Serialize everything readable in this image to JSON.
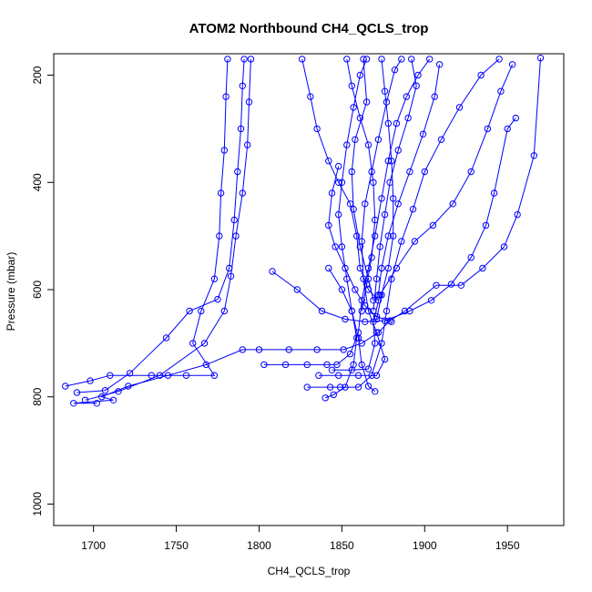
{
  "chart_data": {
    "type": "line",
    "title": "ATOM2 Northbound CH4_QCLS_trop",
    "xlabel": "CH4_QCLS_trop",
    "ylabel": "Pressure (mbar)",
    "xlim": [
      1676,
      1984
    ],
    "ylim": [
      1040,
      160
    ],
    "y_inverted": true,
    "xticks": [
      1700,
      1750,
      1800,
      1850,
      1900,
      1950
    ],
    "yticks": [
      200,
      400,
      600,
      800,
      1000
    ],
    "series_color": "#0000ff",
    "marker": "open-circle",
    "grid": false,
    "series": [
      {
        "values_note": "",
        "points": [
          [
            1702,
            812
          ],
          [
            1688,
            812
          ],
          [
            1712,
            806
          ],
          [
            1705,
            800
          ],
          [
            1721,
            780
          ],
          [
            1745,
            760
          ],
          [
            1768,
            740
          ],
          [
            1790,
            712
          ],
          [
            1800,
            712
          ],
          [
            1818,
            712
          ],
          [
            1835,
            712
          ],
          [
            1851,
            712
          ],
          [
            1862,
            700
          ],
          [
            1872,
            680
          ],
          [
            1879,
            658
          ],
          [
            1888,
            640
          ],
          [
            1907,
            592
          ],
          [
            1922,
            592
          ],
          [
            1935,
            560
          ],
          [
            1948,
            520
          ],
          [
            1956,
            460
          ],
          [
            1966,
            350
          ],
          [
            1970,
            168
          ]
        ]
      },
      {
        "values_note": "",
        "points": [
          [
            1683,
            780
          ],
          [
            1698,
            770
          ],
          [
            1710,
            760
          ],
          [
            1735,
            760
          ],
          [
            1756,
            760
          ],
          [
            1773,
            760
          ],
          [
            1760,
            700
          ],
          [
            1765,
            640
          ],
          [
            1773,
            580
          ],
          [
            1776,
            500
          ],
          [
            1777,
            420
          ],
          [
            1779,
            340
          ],
          [
            1780,
            240
          ],
          [
            1781,
            170
          ]
        ]
      },
      {
        "values_note": "",
        "points": [
          [
            1690,
            792
          ],
          [
            1707,
            788
          ],
          [
            1722,
            756
          ],
          [
            1744,
            690
          ],
          [
            1758,
            640
          ],
          [
            1775,
            618
          ],
          [
            1782,
            560
          ],
          [
            1785,
            470
          ],
          [
            1787,
            380
          ],
          [
            1789,
            300
          ],
          [
            1790,
            220
          ],
          [
            1791,
            170
          ]
        ]
      },
      {
        "values_note": "",
        "points": [
          [
            1695,
            806
          ],
          [
            1715,
            790
          ],
          [
            1740,
            760
          ],
          [
            1767,
            700
          ],
          [
            1779,
            640
          ],
          [
            1783,
            575
          ],
          [
            1786,
            500
          ],
          [
            1790,
            420
          ],
          [
            1793,
            330
          ],
          [
            1794,
            250
          ],
          [
            1795,
            170
          ]
        ]
      },
      {
        "values_note": "",
        "points": [
          [
            1803,
            740
          ],
          [
            1816,
            740
          ],
          [
            1829,
            740
          ],
          [
            1841,
            740
          ],
          [
            1847,
            740
          ],
          [
            1855,
            720
          ],
          [
            1860,
            680
          ],
          [
            1862,
            620
          ],
          [
            1866,
            560
          ],
          [
            1870,
            500
          ],
          [
            1874,
            430
          ],
          [
            1878,
            360
          ],
          [
            1883,
            290
          ],
          [
            1889,
            240
          ],
          [
            1896,
            200
          ],
          [
            1903,
            170
          ]
        ]
      },
      {
        "values_note": "",
        "points": [
          [
            1829,
            782
          ],
          [
            1843,
            782
          ],
          [
            1849,
            782
          ],
          [
            1860,
            782
          ],
          [
            1868,
            760
          ],
          [
            1874,
            700
          ],
          [
            1877,
            640
          ],
          [
            1880,
            580
          ],
          [
            1886,
            510
          ],
          [
            1893,
            450
          ],
          [
            1900,
            380
          ],
          [
            1910,
            320
          ],
          [
            1921,
            260
          ],
          [
            1934,
            200
          ],
          [
            1945,
            170
          ]
        ]
      },
      {
        "values_note": "",
        "points": [
          [
            1840,
            802
          ],
          [
            1845,
            796
          ],
          [
            1852,
            782
          ],
          [
            1857,
            740
          ],
          [
            1859,
            690
          ],
          [
            1856,
            640
          ],
          [
            1853,
            580
          ],
          [
            1850,
            520
          ],
          [
            1848,
            460
          ],
          [
            1850,
            400
          ],
          [
            1853,
            330
          ],
          [
            1857,
            260
          ],
          [
            1861,
            200
          ],
          [
            1865,
            170
          ]
        ]
      },
      {
        "values_note": "",
        "points": [
          [
            1836,
            760
          ],
          [
            1848,
            760
          ],
          [
            1860,
            760
          ],
          [
            1871,
            760
          ],
          [
            1876,
            730
          ],
          [
            1871,
            680
          ],
          [
            1866,
            640
          ],
          [
            1863,
            580
          ],
          [
            1862,
            510
          ],
          [
            1864,
            440
          ],
          [
            1868,
            380
          ],
          [
            1872,
            320
          ],
          [
            1877,
            250
          ],
          [
            1882,
            190
          ],
          [
            1886,
            170
          ]
        ]
      },
      {
        "values_note": "",
        "points": [
          [
            1844,
            750
          ],
          [
            1856,
            750
          ],
          [
            1866,
            748
          ],
          [
            1870,
            700
          ],
          [
            1869,
            660
          ],
          [
            1873,
            610
          ],
          [
            1883,
            560
          ],
          [
            1894,
            510
          ],
          [
            1905,
            480
          ],
          [
            1917,
            440
          ],
          [
            1928,
            380
          ],
          [
            1938,
            300
          ],
          [
            1946,
            230
          ],
          [
            1953,
            180
          ]
        ]
      },
      {
        "values_note": "",
        "points": [
          [
            1808,
            566
          ],
          [
            1823,
            600
          ],
          [
            1838,
            640
          ],
          [
            1852,
            655
          ],
          [
            1864,
            660
          ],
          [
            1876,
            658
          ],
          [
            1891,
            640
          ],
          [
            1904,
            620
          ],
          [
            1916,
            590
          ],
          [
            1928,
            540
          ],
          [
            1937,
            480
          ],
          [
            1942,
            420
          ],
          [
            1950,
            300
          ],
          [
            1955,
            280
          ]
        ]
      },
      {
        "values_note": "",
        "points": [
          [
            1842,
            560
          ],
          [
            1850,
            600
          ],
          [
            1856,
            640
          ],
          [
            1860,
            690
          ],
          [
            1862,
            740
          ],
          [
            1866,
            780
          ],
          [
            1870,
            790
          ]
        ]
      },
      {
        "values_note": "",
        "points": [
          [
            1848,
            370
          ],
          [
            1844,
            420
          ],
          [
            1842,
            480
          ],
          [
            1846,
            520
          ],
          [
            1852,
            560
          ],
          [
            1858,
            600
          ],
          [
            1864,
            630
          ],
          [
            1871,
            650
          ],
          [
            1880,
            660
          ]
        ]
      },
      {
        "values_note": "",
        "points": [
          [
            1826,
            170
          ],
          [
            1831,
            240
          ],
          [
            1835,
            300
          ],
          [
            1842,
            360
          ],
          [
            1848,
            400
          ],
          [
            1855,
            440
          ],
          [
            1859,
            500
          ],
          [
            1861,
            560
          ],
          [
            1866,
            600
          ],
          [
            1872,
            620
          ]
        ]
      },
      {
        "values_note": "",
        "points": [
          [
            1853,
            170
          ],
          [
            1856,
            220
          ],
          [
            1861,
            280
          ],
          [
            1866,
            330
          ],
          [
            1869,
            400
          ],
          [
            1870,
            470
          ],
          [
            1868,
            540
          ],
          [
            1865,
            590
          ],
          [
            1862,
            640
          ]
        ]
      },
      {
        "values_note": "",
        "points": [
          [
            1874,
            170
          ],
          [
            1876,
            230
          ],
          [
            1878,
            290
          ],
          [
            1880,
            360
          ],
          [
            1881,
            430
          ],
          [
            1881,
            500
          ],
          [
            1878,
            560
          ],
          [
            1874,
            610
          ],
          [
            1871,
            655
          ]
        ]
      },
      {
        "values_note": "",
        "points": [
          [
            1892,
            170
          ],
          [
            1895,
            220
          ],
          [
            1890,
            280
          ],
          [
            1884,
            340
          ],
          [
            1879,
            400
          ],
          [
            1876,
            460
          ],
          [
            1873,
            520
          ],
          [
            1871,
            580
          ],
          [
            1869,
            640
          ]
        ]
      },
      {
        "values_note": "",
        "points": [
          [
            1909,
            180
          ],
          [
            1906,
            240
          ],
          [
            1899,
            310
          ],
          [
            1891,
            380
          ],
          [
            1884,
            440
          ],
          [
            1878,
            500
          ],
          [
            1874,
            560
          ],
          [
            1872,
            610
          ]
        ]
      },
      {
        "values_note": "",
        "points": [
          [
            1863,
            170
          ],
          [
            1865,
            250
          ],
          [
            1858,
            320
          ],
          [
            1856,
            380
          ],
          [
            1857,
            450
          ],
          [
            1861,
            520
          ],
          [
            1866,
            580
          ],
          [
            1869,
            620
          ]
        ]
      }
    ]
  }
}
